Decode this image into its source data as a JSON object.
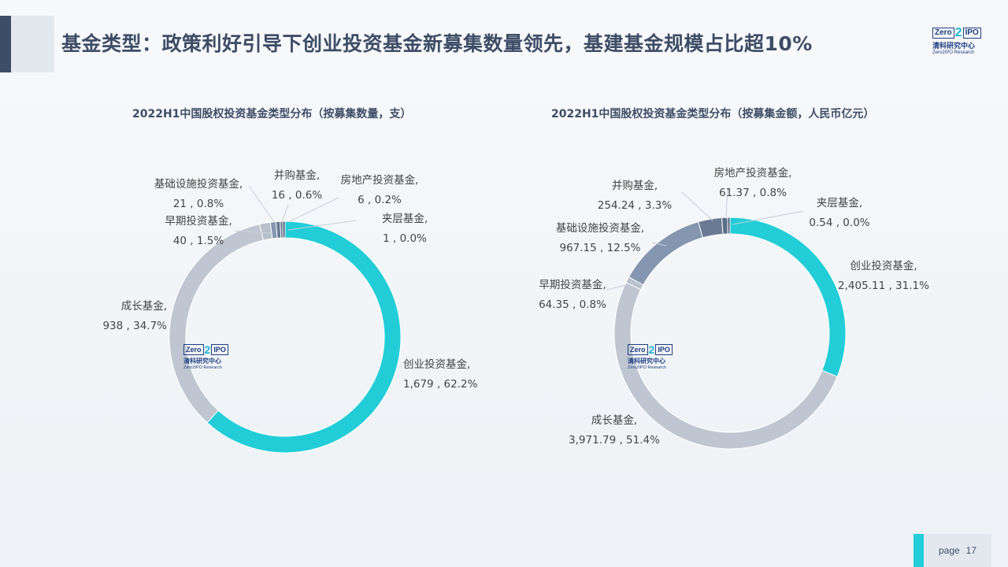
{
  "header": {
    "title": "基金类型：政策利好引导下创业投资基金新募集数量领先，基建基金规模占比超10%"
  },
  "logo": {
    "brand_left": "Zero",
    "brand_two": "2",
    "brand_right": "IPO",
    "name_cn": "清科研究中心",
    "name_en": "Zero2IPO Research"
  },
  "footer": {
    "page_label": "page",
    "page_number": "17"
  },
  "colors": {
    "venture": "#22cdd8",
    "growth": "#bfc6d1",
    "early": "#b8c0cc",
    "infrastructure": "#8496b0",
    "ma": "#6b7a93",
    "real_estate": "#5a6c88",
    "mezzanine": "#485a75"
  },
  "chart_data": [
    {
      "type": "pie",
      "title": "2022H1中国股权投资基金类型分布（按募集数量，支）",
      "slices": [
        {
          "key": "venture",
          "name": "创业投资基金,",
          "value": 1679,
          "value_label": "1,679",
          "percent_label": "62.2%"
        },
        {
          "key": "growth",
          "name": "成长基金,",
          "value": 938,
          "value_label": "938",
          "percent_label": "34.7%"
        },
        {
          "key": "early",
          "name": "早期投资基金,",
          "value": 40,
          "value_label": "40",
          "percent_label": "1.5%"
        },
        {
          "key": "infrastructure",
          "name": "基础设施投资基金,",
          "value": 21,
          "value_label": "21",
          "percent_label": "0.8%"
        },
        {
          "key": "ma",
          "name": "并购基金,",
          "value": 16,
          "value_label": "16",
          "percent_label": "0.6%"
        },
        {
          "key": "real_estate",
          "name": "房地产投资基金,",
          "value": 6,
          "value_label": "6",
          "percent_label": "0.2%"
        },
        {
          "key": "mezzanine",
          "name": "夹层基金,",
          "value": 1,
          "value_label": "1",
          "percent_label": "0.0%"
        }
      ]
    },
    {
      "type": "pie",
      "title": "2022H1中国股权投资基金类型分布（按募集金额，人民币亿元）",
      "slices": [
        {
          "key": "venture",
          "name": "创业投资基金,",
          "value": 2405.11,
          "value_label": "2,405.11",
          "percent_label": "31.1%"
        },
        {
          "key": "growth",
          "name": "成长基金,",
          "value": 3971.79,
          "value_label": "3,971.79",
          "percent_label": "51.4%"
        },
        {
          "key": "early",
          "name": "早期投资基金,",
          "value": 64.35,
          "value_label": "64.35",
          "percent_label": "0.8%"
        },
        {
          "key": "infrastructure",
          "name": "基础设施投资基金,",
          "value": 967.15,
          "value_label": "967.15",
          "percent_label": "12.5%"
        },
        {
          "key": "ma",
          "name": "并购基金,",
          "value": 254.24,
          "value_label": "254.24",
          "percent_label": "3.3%"
        },
        {
          "key": "real_estate",
          "name": "房地产投资基金,",
          "value": 61.37,
          "value_label": "61.37",
          "percent_label": "0.8%"
        },
        {
          "key": "mezzanine",
          "name": "夹层基金,",
          "value": 0.54,
          "value_label": "0.54",
          "percent_label": "0.0%"
        }
      ]
    }
  ]
}
